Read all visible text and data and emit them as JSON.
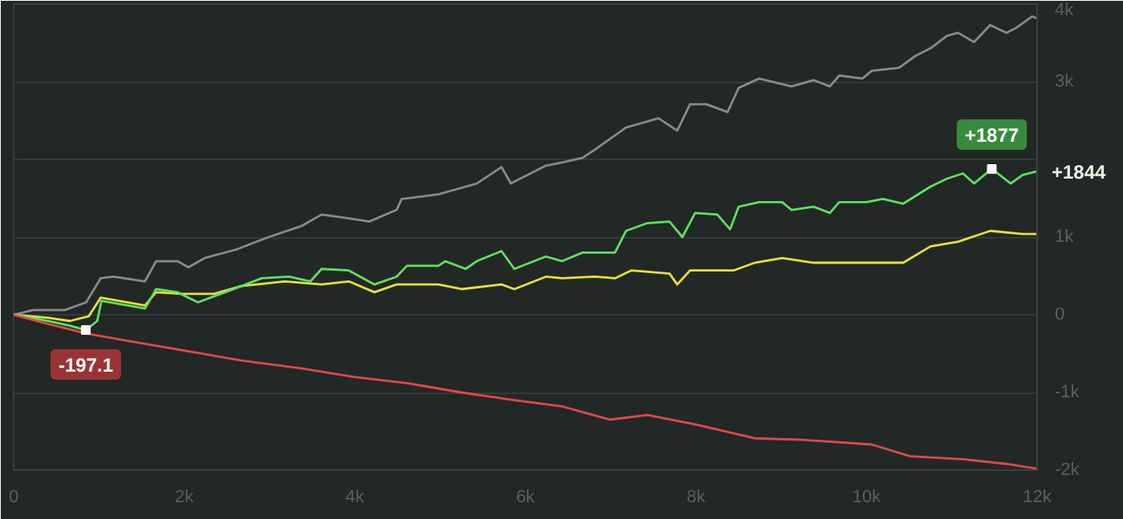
{
  "chart_data": {
    "type": "line",
    "marker": "none",
    "grid": "y",
    "xlim": [
      0,
      12000
    ],
    "ylim": [
      -2000,
      4000
    ],
    "xticks": [
      0,
      {
        "value": 2000,
        "label": "2k"
      },
      {
        "value": 4000,
        "label": "4k"
      },
      {
        "value": 6000,
        "label": "6k"
      },
      {
        "value": 8000,
        "label": "8k"
      },
      {
        "value": 10000,
        "label": "10k"
      },
      {
        "value": 12000,
        "label": "12k"
      }
    ],
    "yticks": [
      {
        "value": -2000,
        "label": "-2k"
      },
      {
        "value": -1000,
        "label": "-1k"
      },
      0,
      {
        "value": 1000,
        "label": "1k"
      },
      {
        "value": 2000,
        "label": null
      },
      {
        "value": 3000,
        "label": "3k"
      },
      {
        "value": 4000,
        "label": "4k"
      }
    ],
    "series": [
      {
        "color": "#8a8a8a",
        "x": [
          0,
          230,
          600,
          850,
          1020,
          1170,
          1540,
          1670,
          1920,
          2050,
          2240,
          2610,
          2990,
          3370,
          3610,
          3930,
          4170,
          4490,
          4550,
          4980,
          5110,
          5430,
          5720,
          5830,
          6240,
          6430,
          6670,
          6860,
          7180,
          7560,
          7780,
          7930,
          8120,
          8370,
          8500,
          8740,
          9120,
          9380,
          9570,
          9680,
          9950,
          10060,
          10380,
          10570,
          10750,
          10940,
          11070,
          11260,
          11450,
          11640,
          11750,
          11940,
          11990
        ],
        "values": [
          0,
          60,
          60,
          160,
          470,
          490,
          430,
          690,
          690,
          610,
          730,
          840,
          1000,
          1140,
          1290,
          1240,
          1200,
          1350,
          1490,
          1550,
          1590,
          1690,
          1900,
          1690,
          1920,
          1960,
          2020,
          2160,
          2410,
          2530,
          2370,
          2710,
          2710,
          2610,
          2920,
          3040,
          2940,
          3020,
          2940,
          3080,
          3040,
          3140,
          3180,
          3330,
          3430,
          3590,
          3630,
          3510,
          3730,
          3630,
          3690,
          3840,
          3820
        ]
      },
      {
        "color": "#e8e03a",
        "x": [
          0,
          410,
          660,
          880,
          1020,
          1540,
          1670,
          1970,
          2350,
          2670,
          3180,
          3610,
          3930,
          4230,
          4490,
          4980,
          5250,
          5720,
          5870,
          6240,
          6430,
          6810,
          7050,
          7240,
          7690,
          7780,
          7930,
          8440,
          8690,
          9010,
          9380,
          9950,
          10430,
          10750,
          11070,
          11450,
          11830,
          11990
        ],
        "values": [
          0,
          -40,
          -80,
          -20,
          220,
          120,
          290,
          270,
          270,
          370,
          430,
          390,
          430,
          290,
          390,
          390,
          330,
          390,
          330,
          490,
          470,
          490,
          470,
          570,
          530,
          390,
          570,
          570,
          670,
          730,
          670,
          670,
          670,
          880,
          940,
          1080,
          1040,
          1040
        ]
      },
      {
        "color": "#5ee05e",
        "x": [
          0,
          410,
          660,
          846,
          980,
          1030,
          1540,
          1670,
          1920,
          2160,
          2480,
          2910,
          3230,
          3480,
          3610,
          3930,
          4230,
          4490,
          4610,
          4980,
          5060,
          5300,
          5430,
          5720,
          5870,
          6240,
          6430,
          6670,
          7050,
          7180,
          7430,
          7690,
          7840,
          7990,
          8250,
          8400,
          8500,
          8740,
          9010,
          9120,
          9380,
          9570,
          9680,
          10000,
          10190,
          10430,
          10750,
          10940,
          11130,
          11260,
          11468,
          11690,
          11830,
          11990
        ],
        "values": [
          0,
          -80,
          -140,
          -197.1,
          -80,
          180,
          80,
          330,
          290,
          160,
          290,
          470,
          490,
          430,
          590,
          570,
          390,
          490,
          630,
          630,
          690,
          590,
          690,
          820,
          590,
          750,
          690,
          800,
          800,
          1080,
          1180,
          1200,
          1000,
          1310,
          1290,
          1100,
          1390,
          1450,
          1450,
          1350,
          1390,
          1310,
          1450,
          1450,
          1490,
          1430,
          1650,
          1750,
          1820,
          1690,
          1877,
          1690,
          1800,
          1844
        ]
      },
      {
        "color": "#e04848",
        "x": [
          0,
          410,
          850,
          1410,
          2160,
          2670,
          3370,
          3990,
          4610,
          5250,
          5870,
          6430,
          6990,
          7430,
          7990,
          8690,
          9250,
          10060,
          10510,
          11130,
          11640,
          11990
        ],
        "values": [
          0,
          -120,
          -240,
          -350,
          -490,
          -590,
          -690,
          -800,
          -880,
          -1000,
          -1100,
          -1180,
          -1350,
          -1290,
          -1410,
          -1590,
          -1610,
          -1670,
          -1820,
          -1860,
          -1920,
          -1980
        ]
      }
    ],
    "annotations": [
      {
        "text": "-197.1",
        "x": 846,
        "y": -197.1
      },
      {
        "text": "+1877",
        "x": 11468,
        "y": 1877
      },
      {
        "text": "+1844",
        "x": 11990,
        "y": 1844
      }
    ]
  }
}
